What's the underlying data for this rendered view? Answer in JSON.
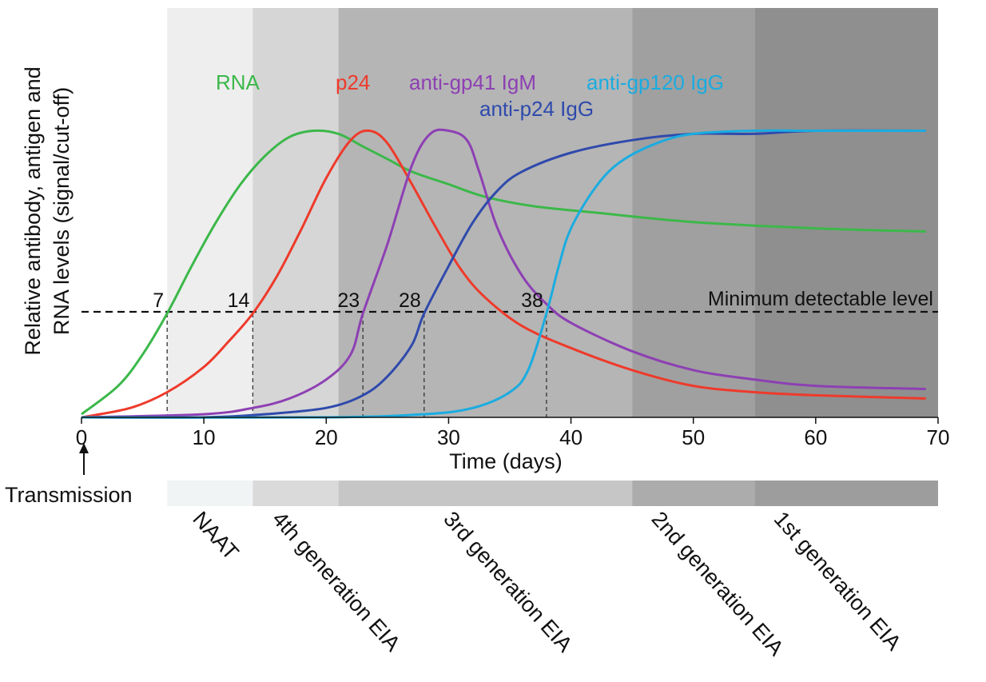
{
  "chart_data": {
    "type": "line",
    "title": "",
    "xlabel": "Time (days)",
    "ylabel_lines": [
      "Relative antibody, antigen and",
      "RNA levels (signal/cut-off)"
    ],
    "xlim": [
      0,
      70
    ],
    "ylim": [
      0,
      1
    ],
    "x_ticks": [
      "0",
      "10",
      "20",
      "30",
      "40",
      "50",
      "60",
      "70"
    ],
    "grid": false,
    "series": [
      {
        "name": "RNA",
        "color": "#3cb84a",
        "points": [
          [
            0,
            0.01
          ],
          [
            3,
            0.1
          ],
          [
            5,
            0.2
          ],
          [
            7,
            0.33
          ],
          [
            9,
            0.48
          ],
          [
            11,
            0.62
          ],
          [
            13,
            0.74
          ],
          [
            15,
            0.83
          ],
          [
            17,
            0.89
          ],
          [
            19,
            0.91
          ],
          [
            21,
            0.9
          ],
          [
            23,
            0.86
          ],
          [
            25,
            0.82
          ],
          [
            27,
            0.78
          ],
          [
            30,
            0.74
          ],
          [
            33,
            0.7
          ],
          [
            37,
            0.67
          ],
          [
            42,
            0.65
          ],
          [
            50,
            0.62
          ],
          [
            60,
            0.6
          ],
          [
            69,
            0.59
          ]
        ]
      },
      {
        "name": "p24",
        "color": "#ee3a2b",
        "points": [
          [
            0,
            0.0
          ],
          [
            4,
            0.03
          ],
          [
            7,
            0.08
          ],
          [
            10,
            0.16
          ],
          [
            12,
            0.24
          ],
          [
            14,
            0.33
          ],
          [
            16,
            0.45
          ],
          [
            18,
            0.6
          ],
          [
            20,
            0.76
          ],
          [
            22,
            0.88
          ],
          [
            23.5,
            0.91
          ],
          [
            25,
            0.87
          ],
          [
            27,
            0.74
          ],
          [
            29,
            0.6
          ],
          [
            31,
            0.47
          ],
          [
            33,
            0.38
          ],
          [
            36,
            0.29
          ],
          [
            40,
            0.22
          ],
          [
            45,
            0.15
          ],
          [
            50,
            0.1
          ],
          [
            55,
            0.08
          ],
          [
            60,
            0.07
          ],
          [
            69,
            0.06
          ]
        ]
      },
      {
        "name": "anti-gp41 IgM",
        "color": "#8d40b3",
        "points": [
          [
            0,
            0.0
          ],
          [
            10,
            0.01
          ],
          [
            14,
            0.03
          ],
          [
            17,
            0.06
          ],
          [
            20,
            0.12
          ],
          [
            22,
            0.2
          ],
          [
            23,
            0.33
          ],
          [
            25,
            0.55
          ],
          [
            27,
            0.8
          ],
          [
            28.5,
            0.9
          ],
          [
            30,
            0.91
          ],
          [
            31.5,
            0.88
          ],
          [
            32.5,
            0.78
          ],
          [
            34,
            0.6
          ],
          [
            36,
            0.45
          ],
          [
            38,
            0.36
          ],
          [
            40,
            0.3
          ],
          [
            45,
            0.21
          ],
          [
            50,
            0.15
          ],
          [
            55,
            0.12
          ],
          [
            60,
            0.1
          ],
          [
            69,
            0.09
          ]
        ]
      },
      {
        "name": "anti-p24 IgG",
        "color": "#2f4aac",
        "points": [
          [
            0,
            0.0
          ],
          [
            10,
            0.0
          ],
          [
            15,
            0.01
          ],
          [
            20,
            0.03
          ],
          [
            23,
            0.07
          ],
          [
            25,
            0.13
          ],
          [
            27,
            0.23
          ],
          [
            28,
            0.33
          ],
          [
            30,
            0.48
          ],
          [
            32,
            0.62
          ],
          [
            34,
            0.72
          ],
          [
            36,
            0.78
          ],
          [
            40,
            0.84
          ],
          [
            45,
            0.88
          ],
          [
            50,
            0.9
          ],
          [
            55,
            0.9
          ],
          [
            60,
            0.91
          ],
          [
            69,
            0.91
          ]
        ]
      },
      {
        "name": "anti-gp120 IgG",
        "color": "#1aace0",
        "points": [
          [
            0,
            0.0
          ],
          [
            20,
            0.0
          ],
          [
            28,
            0.01
          ],
          [
            32,
            0.03
          ],
          [
            35,
            0.08
          ],
          [
            36.5,
            0.15
          ],
          [
            38,
            0.33
          ],
          [
            39,
            0.48
          ],
          [
            40,
            0.6
          ],
          [
            42,
            0.73
          ],
          [
            44,
            0.81
          ],
          [
            47,
            0.87
          ],
          [
            50,
            0.9
          ],
          [
            55,
            0.91
          ],
          [
            60,
            0.91
          ],
          [
            69,
            0.91
          ]
        ]
      }
    ],
    "threshold": {
      "label": "Minimum detectable level",
      "value": 0.33
    },
    "crossings": [
      {
        "day": 7,
        "label": "7"
      },
      {
        "day": 14,
        "label": "14"
      },
      {
        "day": 23,
        "label": "23"
      },
      {
        "day": 28,
        "label": "28"
      },
      {
        "day": 38,
        "label": "38"
      }
    ],
    "windows": [
      {
        "from": 0,
        "to": 7,
        "color": "#ffffff",
        "bar_color": "#ffffff"
      },
      {
        "from": 7,
        "to": 14,
        "color": "#eeeeee",
        "bar_color": "#f1f4f4"
      },
      {
        "from": 14,
        "to": 21,
        "color": "#d6d6d6",
        "bar_color": "#dadada"
      },
      {
        "from": 21,
        "to": 45,
        "color": "#b5b5b5",
        "bar_color": "#c6c6c6"
      },
      {
        "from": 45,
        "to": 55,
        "color": "#a0a0a0",
        "bar_color": "#acacac"
      },
      {
        "from": 55,
        "to": 70,
        "color": "#8f8f8f",
        "bar_color": "#9d9d9d"
      }
    ],
    "assays": [
      {
        "label": "NAAT",
        "day": 9
      },
      {
        "label": "4th generation EIA",
        "day": 15.5
      },
      {
        "label": "3rd generation EIA",
        "day": 29.5
      },
      {
        "label": "2nd generation EIA",
        "day": 46.5
      },
      {
        "label": "1st generation EIA",
        "day": 56.5
      }
    ],
    "transmission_label": "Transmission"
  }
}
